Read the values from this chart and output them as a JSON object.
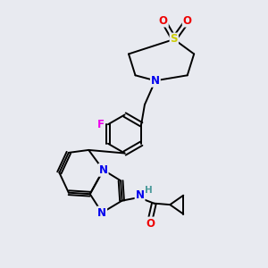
{
  "background_color": "#e8eaf0",
  "atom_colors": {
    "C": "#000000",
    "N": "#0000ee",
    "O": "#ee0000",
    "S": "#cccc00",
    "F": "#ee00ee",
    "H": "#4a9a9a"
  },
  "bond_color": "#000000",
  "bond_width": 1.4,
  "figsize": [
    3.0,
    3.0
  ],
  "dpi": 100,
  "xlim": [
    0,
    10
  ],
  "ylim": [
    0,
    10
  ]
}
